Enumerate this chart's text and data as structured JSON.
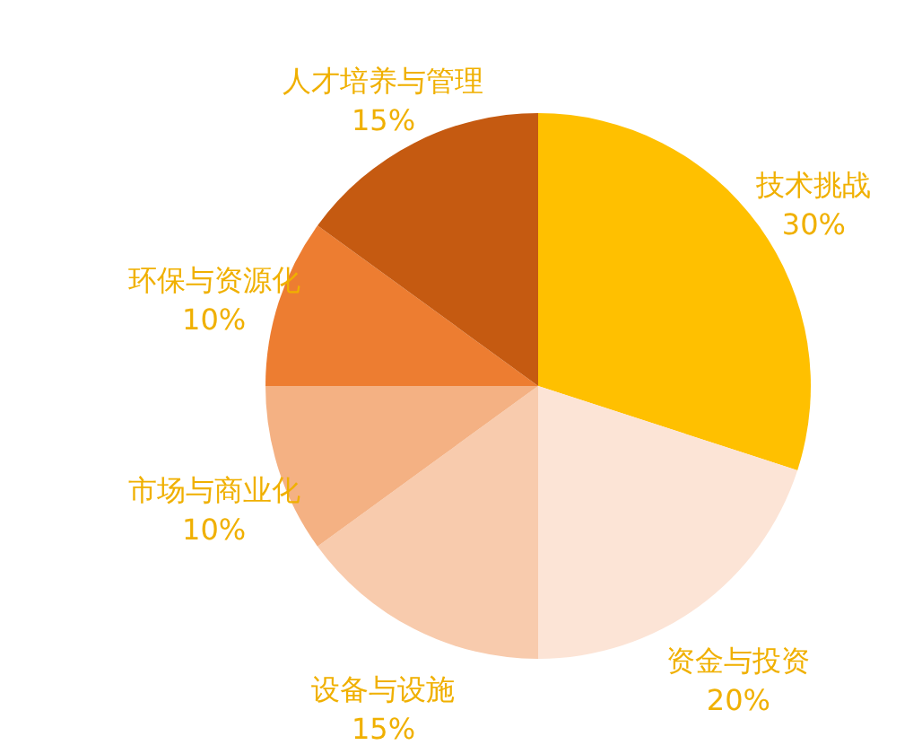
{
  "chart_data": {
    "type": "pie",
    "categories": [
      "技术挑战",
      "资金与投资",
      "设备与设施",
      "市场与商业化",
      "环保与资源化",
      "人才培养与管理"
    ],
    "values": [
      30,
      20,
      15,
      10,
      10,
      15
    ],
    "colors": [
      "#ffc000",
      "#fce4d6",
      "#f8cbad",
      "#f4b183",
      "#ed7d31",
      "#c55a11"
    ],
    "value_labels": [
      "30%",
      "20%",
      "15%",
      "10%",
      "10%",
      "15%"
    ],
    "legend": false
  }
}
